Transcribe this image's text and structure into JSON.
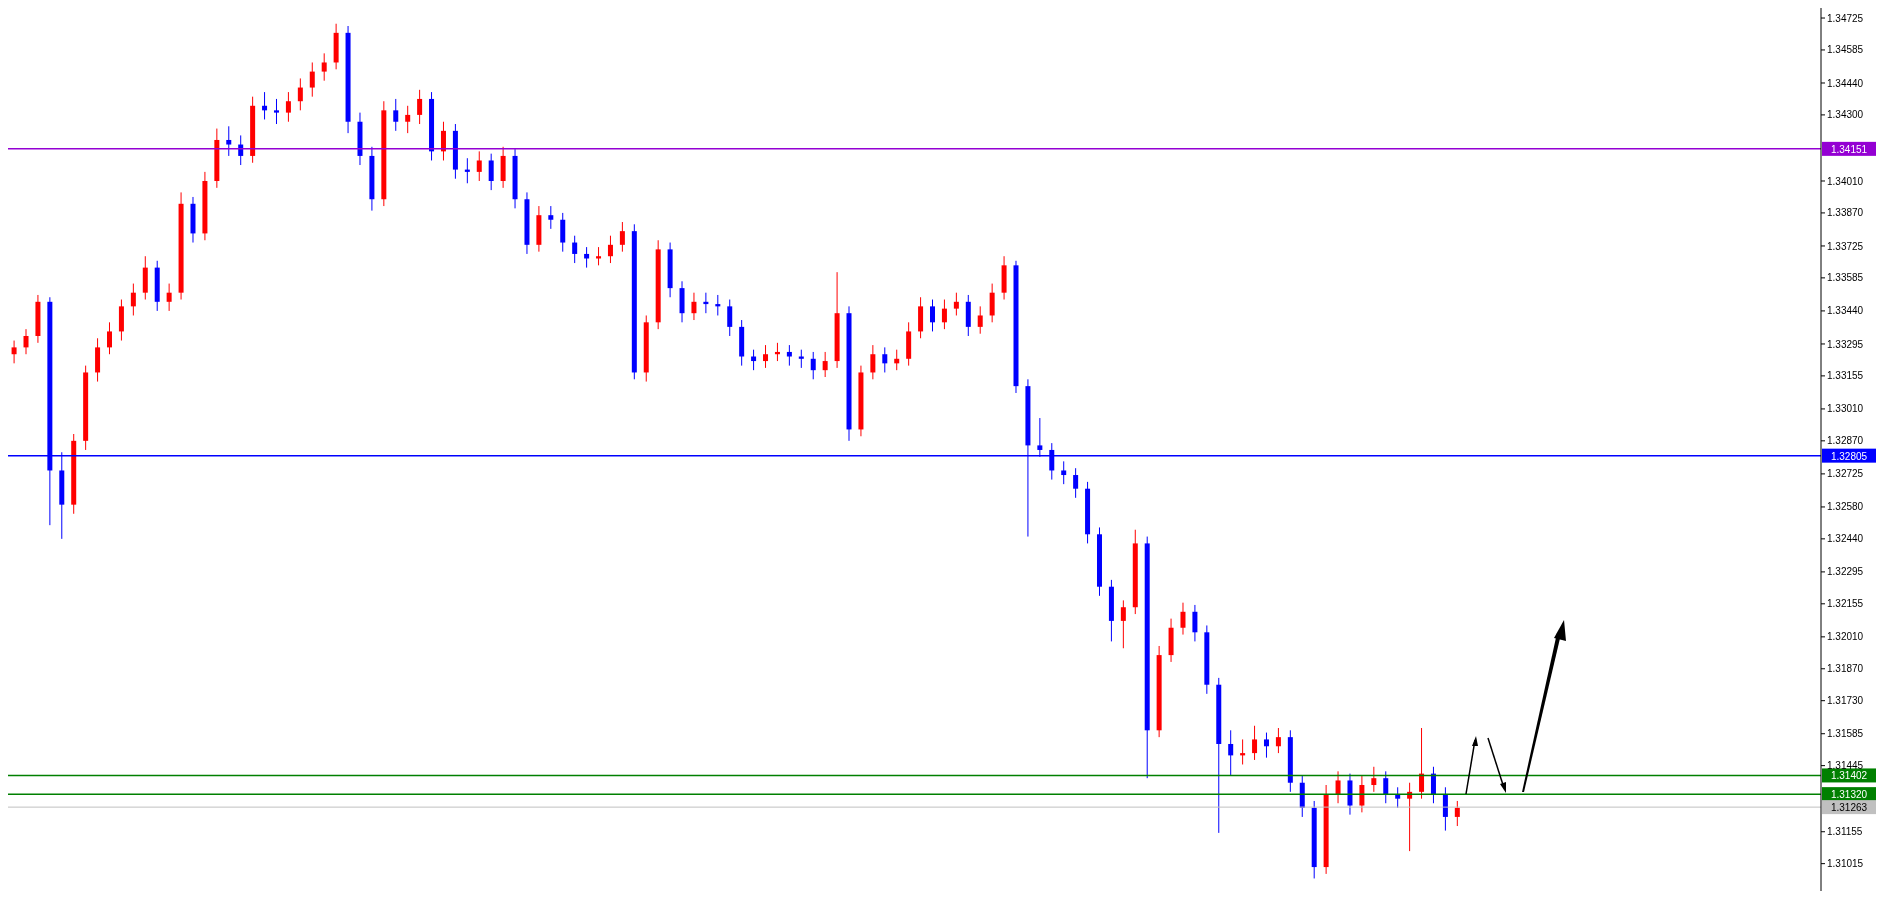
{
  "chart_data": {
    "type": "candlestick",
    "categories": [
      null,
      null,
      null,
      null,
      null,
      null,
      null,
      null,
      null,
      null,
      null,
      null,
      null,
      null,
      null,
      null,
      null,
      null,
      null,
      null,
      null,
      null,
      null,
      null,
      null,
      null,
      null,
      null,
      null,
      null,
      null,
      null,
      null,
      null,
      null,
      null,
      null,
      null,
      null,
      null,
      null,
      null,
      null,
      null,
      null,
      null,
      null,
      null,
      null,
      null,
      null,
      null,
      null,
      null,
      null,
      null,
      null,
      null,
      null,
      null,
      null,
      null,
      null,
      null,
      null,
      null,
      null,
      null,
      null,
      null,
      null,
      null,
      null,
      null,
      null,
      null,
      null,
      null,
      null,
      null,
      null,
      null,
      null,
      null,
      null,
      null,
      null,
      null,
      null,
      null,
      null,
      null,
      null,
      null,
      null,
      null,
      null,
      null,
      null,
      null,
      null,
      null,
      null,
      null,
      null,
      null,
      null,
      null,
      null,
      null,
      null,
      null,
      null,
      null,
      null,
      null,
      null,
      null,
      null,
      null,
      null,
      null,
      null,
      null,
      null,
      null,
      null,
      null,
      null,
      null,
      null,
      null,
      null,
      null,
      null,
      null,
      null,
      null,
      null,
      null,
      null,
      null,
      null,
      null,
      null,
      null,
      null,
      null,
      null,
      null,
      null,
      null
    ],
    "ohlc": [
      [
        1.3325,
        1.3331,
        1.3321,
        1.3328
      ],
      [
        1.3328,
        1.3336,
        1.3325,
        1.3333
      ],
      [
        1.3333,
        1.3351,
        1.333,
        1.3348
      ],
      [
        1.3348,
        1.335,
        1.325,
        1.3274
      ],
      [
        1.3274,
        1.3282,
        1.3244,
        1.3259
      ],
      [
        1.3259,
        1.329,
        1.3255,
        1.3287
      ],
      [
        1.3287,
        1.332,
        1.3283,
        1.3317
      ],
      [
        1.3317,
        1.3332,
        1.3313,
        1.3328
      ],
      [
        1.3328,
        1.3339,
        1.3325,
        1.3335
      ],
      [
        1.3335,
        1.3349,
        1.3331,
        1.3346
      ],
      [
        1.3346,
        1.3356,
        1.3342,
        1.3352
      ],
      [
        1.3352,
        1.3368,
        1.3349,
        1.3363
      ],
      [
        1.3363,
        1.3366,
        1.3344,
        1.3348
      ],
      [
        1.3348,
        1.3356,
        1.3344,
        1.3352
      ],
      [
        1.3352,
        1.3396,
        1.3349,
        1.3391
      ],
      [
        1.3391,
        1.3394,
        1.3374,
        1.3378
      ],
      [
        1.3378,
        1.3405,
        1.3375,
        1.3401
      ],
      [
        1.3401,
        1.3424,
        1.3398,
        1.3419
      ],
      [
        1.3419,
        1.3425,
        1.3412,
        1.3417
      ],
      [
        1.3417,
        1.3421,
        1.3408,
        1.3412
      ],
      [
        1.3412,
        1.3438,
        1.3409,
        1.3434
      ],
      [
        1.3434,
        1.344,
        1.3428,
        1.3432
      ],
      [
        1.3432,
        1.3437,
        1.3426,
        1.3431
      ],
      [
        1.3431,
        1.344,
        1.3427,
        1.3436
      ],
      [
        1.3436,
        1.3446,
        1.3432,
        1.3442
      ],
      [
        1.3442,
        1.3453,
        1.3438,
        1.3449
      ],
      [
        1.3449,
        1.3457,
        1.3445,
        1.3453
      ],
      [
        1.3453,
        1.347,
        1.345,
        1.3466
      ],
      [
        1.3466,
        1.3469,
        1.3422,
        1.3427
      ],
      [
        1.3427,
        1.3431,
        1.3408,
        1.3412
      ],
      [
        1.3412,
        1.3416,
        1.3388,
        1.3393
      ],
      [
        1.3393,
        1.3436,
        1.339,
        1.3432
      ],
      [
        1.3432,
        1.3437,
        1.3423,
        1.3427
      ],
      [
        1.3427,
        1.3434,
        1.3422,
        1.343
      ],
      [
        1.343,
        1.3441,
        1.3426,
        1.3437
      ],
      [
        1.3437,
        1.344,
        1.341,
        1.3414
      ],
      [
        1.3414,
        1.3427,
        1.341,
        1.3423
      ],
      [
        1.3423,
        1.3426,
        1.3402,
        1.3406
      ],
      [
        1.3406,
        1.3411,
        1.34,
        1.3405
      ],
      [
        1.3405,
        1.3414,
        1.3401,
        1.341
      ],
      [
        1.341,
        1.3413,
        1.3397,
        1.3401
      ],
      [
        1.3401,
        1.3416,
        1.3398,
        1.3412
      ],
      [
        1.3412,
        1.3415,
        1.3389,
        1.3393
      ],
      [
        1.3393,
        1.3396,
        1.3369,
        1.3373
      ],
      [
        1.3373,
        1.339,
        1.337,
        1.3386
      ],
      [
        1.3386,
        1.339,
        1.338,
        1.3384
      ],
      [
        1.3384,
        1.3387,
        1.337,
        1.3374
      ],
      [
        1.3374,
        1.3377,
        1.3365,
        1.3369
      ],
      [
        1.3369,
        1.3372,
        1.3363,
        1.3367
      ],
      [
        1.3367,
        1.3372,
        1.3364,
        1.3368
      ],
      [
        1.3368,
        1.3377,
        1.3365,
        1.3373
      ],
      [
        1.3373,
        1.3383,
        1.337,
        1.3379
      ],
      [
        1.3379,
        1.3382,
        1.3314,
        1.3317
      ],
      [
        1.3317,
        1.3342,
        1.3313,
        1.3339
      ],
      [
        1.3339,
        1.3375,
        1.3336,
        1.3371
      ],
      [
        1.3371,
        1.3374,
        1.335,
        1.3354
      ],
      [
        1.3354,
        1.3357,
        1.3339,
        1.3343
      ],
      [
        1.3343,
        1.3352,
        1.334,
        1.3348
      ],
      [
        1.3348,
        1.3352,
        1.3343,
        1.3347
      ],
      [
        1.3347,
        1.3351,
        1.3342,
        1.3346
      ],
      [
        1.3346,
        1.3349,
        1.3333,
        1.3337
      ],
      [
        1.3337,
        1.334,
        1.332,
        1.3324
      ],
      [
        1.3324,
        1.3327,
        1.3318,
        1.3322
      ],
      [
        1.3322,
        1.3329,
        1.3319,
        1.3325
      ],
      [
        1.3325,
        1.333,
        1.3322,
        1.3326
      ],
      [
        1.3326,
        1.3329,
        1.332,
        1.3324
      ],
      [
        1.3324,
        1.3327,
        1.3319,
        1.3323
      ],
      [
        1.3323,
        1.3326,
        1.3314,
        1.3318
      ],
      [
        1.3318,
        1.3326,
        1.3315,
        1.3322
      ],
      [
        1.3322,
        1.3361,
        1.3319,
        1.3343
      ],
      [
        1.3343,
        1.3346,
        1.3287,
        1.3292
      ],
      [
        1.3292,
        1.332,
        1.3289,
        1.3317
      ],
      [
        1.3317,
        1.3329,
        1.3314,
        1.3325
      ],
      [
        1.3325,
        1.3328,
        1.3317,
        1.3321
      ],
      [
        1.3321,
        1.3327,
        1.3318,
        1.3323
      ],
      [
        1.3323,
        1.3339,
        1.332,
        1.3335
      ],
      [
        1.3335,
        1.335,
        1.3332,
        1.3346
      ],
      [
        1.3346,
        1.3349,
        1.3335,
        1.3339
      ],
      [
        1.3339,
        1.3349,
        1.3336,
        1.3345
      ],
      [
        1.3345,
        1.3352,
        1.3342,
        1.3348
      ],
      [
        1.3348,
        1.3351,
        1.3333,
        1.3337
      ],
      [
        1.3337,
        1.3346,
        1.3334,
        1.3342
      ],
      [
        1.3342,
        1.3356,
        1.3339,
        1.3352
      ],
      [
        1.3352,
        1.3368,
        1.3349,
        1.3364
      ],
      [
        1.3364,
        1.3366,
        1.3308,
        1.3311
      ],
      [
        1.3311,
        1.3314,
        1.3245,
        1.3285
      ],
      [
        1.3285,
        1.3297,
        1.328,
        1.3283
      ],
      [
        1.3283,
        1.3286,
        1.327,
        1.3274
      ],
      [
        1.3274,
        1.3278,
        1.3268,
        1.3272
      ],
      [
        1.3272,
        1.3275,
        1.3262,
        1.3266
      ],
      [
        1.3266,
        1.3269,
        1.3242,
        1.3246
      ],
      [
        1.3246,
        1.3249,
        1.3219,
        1.3223
      ],
      [
        1.3223,
        1.3226,
        1.3199,
        1.3208
      ],
      [
        1.3208,
        1.3217,
        1.3196,
        1.3214
      ],
      [
        1.3214,
        1.3248,
        1.3211,
        1.3242
      ],
      [
        1.3242,
        1.3245,
        1.3139,
        1.316
      ],
      [
        1.316,
        1.3197,
        1.3157,
        1.3193
      ],
      [
        1.3193,
        1.3209,
        1.319,
        1.3205
      ],
      [
        1.3205,
        1.3216,
        1.3202,
        1.3212
      ],
      [
        1.3212,
        1.3215,
        1.3199,
        1.3203
      ],
      [
        1.3203,
        1.3206,
        1.3176,
        1.318
      ],
      [
        1.318,
        1.3183,
        1.3115,
        1.3154
      ],
      [
        1.3154,
        1.316,
        1.314,
        1.3149
      ],
      [
        1.3149,
        1.3156,
        1.3145,
        1.315
      ],
      [
        1.315,
        1.3162,
        1.3147,
        1.3156
      ],
      [
        1.3156,
        1.3159,
        1.3148,
        1.3153
      ],
      [
        1.3153,
        1.3161,
        1.315,
        1.3157
      ],
      [
        1.3157,
        1.316,
        1.3133,
        1.3137
      ],
      [
        1.3137,
        1.314,
        1.3122,
        1.3126
      ],
      [
        1.3126,
        1.3129,
        1.3095,
        1.31
      ],
      [
        1.31,
        1.3136,
        1.3097,
        1.3132
      ],
      [
        1.3132,
        1.3142,
        1.3128,
        1.3138
      ],
      [
        1.3138,
        1.3141,
        1.3123,
        1.3127
      ],
      [
        1.3127,
        1.314,
        1.3124,
        1.3136
      ],
      [
        1.3136,
        1.3144,
        1.3133,
        1.3139
      ],
      [
        1.3139,
        1.3142,
        1.3128,
        1.3132
      ],
      [
        1.3132,
        1.3135,
        1.3126,
        1.313
      ],
      [
        1.313,
        1.3137,
        1.3107,
        1.3133
      ],
      [
        1.3133,
        1.3161,
        1.313,
        1.3141
      ],
      [
        1.3141,
        1.3144,
        1.3128,
        1.3132
      ],
      [
        1.3132,
        1.3135,
        1.3116,
        1.3122
      ],
      [
        1.3122,
        1.3129,
        1.3118,
        1.3126
      ],
      null,
      null,
      null,
      null,
      null,
      null,
      null,
      null,
      null,
      null,
      null,
      null,
      null,
      null,
      null,
      null,
      null,
      null,
      null,
      null,
      null,
      null,
      null,
      null,
      null,
      null,
      null,
      null,
      null,
      null
    ],
    "colors": [
      "#ff0000",
      "#ff0000",
      "#ff0000",
      "#0000ff",
      "#0000ff",
      "#ff0000",
      "#ff0000",
      "#ff0000",
      "#ff0000",
      "#ff0000",
      "#ff0000",
      "#ff0000",
      "#0000ff",
      "#ff0000",
      "#ff0000",
      "#0000ff",
      "#ff0000",
      "#ff0000",
      "#0000ff",
      "#0000ff",
      "#ff0000",
      "#0000ff",
      "#0000ff",
      "#ff0000",
      "#ff0000",
      "#ff0000",
      "#ff0000",
      "#ff0000",
      "#0000ff",
      "#0000ff",
      "#0000ff",
      "#ff0000",
      "#0000ff",
      "#ff0000",
      "#ff0000",
      "#0000ff",
      "#ff0000",
      "#0000ff",
      "#0000ff",
      "#ff0000",
      "#0000ff",
      "#ff0000",
      "#0000ff",
      "#0000ff",
      "#ff0000",
      "#0000ff",
      "#0000ff",
      "#0000ff",
      "#0000ff",
      "#ff0000",
      "#ff0000",
      "#ff0000",
      "#0000ff",
      "#ff0000",
      "#ff0000",
      "#0000ff",
      "#0000ff",
      "#ff0000",
      "#0000ff",
      "#0000ff",
      "#0000ff",
      "#0000ff",
      "#0000ff",
      "#ff0000",
      "#ff0000",
      "#0000ff",
      "#0000ff",
      "#0000ff",
      "#ff0000",
      "#ff0000",
      "#0000ff",
      "#ff0000",
      "#ff0000",
      "#0000ff",
      "#ff0000",
      "#ff0000",
      "#ff0000",
      "#0000ff",
      "#ff0000",
      "#ff0000",
      "#0000ff",
      "#ff0000",
      "#ff0000",
      "#ff0000",
      "#0000ff",
      "#0000ff",
      "#0000ff",
      "#0000ff",
      "#0000ff",
      "#0000ff",
      "#0000ff",
      "#0000ff",
      "#0000ff",
      "#ff0000",
      "#ff0000",
      "#0000ff",
      "#ff0000",
      "#ff0000",
      "#ff0000",
      "#0000ff",
      "#0000ff",
      "#0000ff",
      "#0000ff",
      "#ff0000",
      "#ff0000",
      "#0000ff",
      "#ff0000",
      "#0000ff",
      "#0000ff",
      "#0000ff",
      "#ff0000",
      "#ff0000",
      "#0000ff",
      "#ff0000",
      "#ff0000",
      "#0000ff",
      "#0000ff",
      "#ff0000",
      "#ff0000",
      "#0000ff",
      "#0000ff",
      "#ff0000",
      null,
      null,
      null,
      null,
      null,
      null,
      null,
      null,
      null,
      null,
      null,
      null,
      null,
      null,
      null,
      null,
      null,
      null,
      null,
      null,
      null,
      null,
      null,
      null,
      null,
      null,
      null,
      null,
      null,
      null
    ],
    "ylim": [
      1.30895,
      1.34769
    ],
    "yticks": [
      1.34725,
      1.34585,
      {
        "value": 1.3444,
        "label": "1.34440"
      },
      {
        "value": 1.343,
        "label": "1.34300"
      },
      {
        "value": 1.3401,
        "label": "1.34010"
      },
      {
        "value": 1.3387,
        "label": "1.33870"
      },
      1.33725,
      1.33585,
      {
        "value": 1.3344,
        "label": "1.33440"
      },
      1.33295,
      1.33155,
      {
        "value": 1.3301,
        "label": "1.33010"
      },
      {
        "value": 1.3287,
        "label": "1.32870"
      },
      1.32725,
      {
        "value": 1.3258,
        "label": "1.32580"
      },
      {
        "value": 1.3244,
        "label": "1.32440"
      },
      1.32295,
      1.32155,
      {
        "value": 1.3201,
        "label": "1.32010"
      },
      {
        "value": 1.3187,
        "label": "1.31870"
      },
      {
        "value": 1.3173,
        "label": "1.31730"
      },
      1.31585,
      1.31445,
      1.31155,
      1.31015
    ],
    "ref_lines": [
      {
        "axis": "y",
        "value": 1.34151,
        "label": "1.34151",
        "color": "#9400d3"
      },
      {
        "axis": "y",
        "value": 1.32805,
        "label": "1.32805",
        "color": "#0000ff"
      },
      {
        "axis": "y",
        "value": 1.31402,
        "label": "1.31402",
        "color": "#008000"
      },
      {
        "axis": "y",
        "value": 1.3132,
        "label": "1.31320",
        "color": "#008000"
      },
      {
        "axis": "y",
        "value": 1.31263,
        "label": "1.31263",
        "color": "#c0c0c0"
      }
    ],
    "tick_labels": "y"
  }
}
